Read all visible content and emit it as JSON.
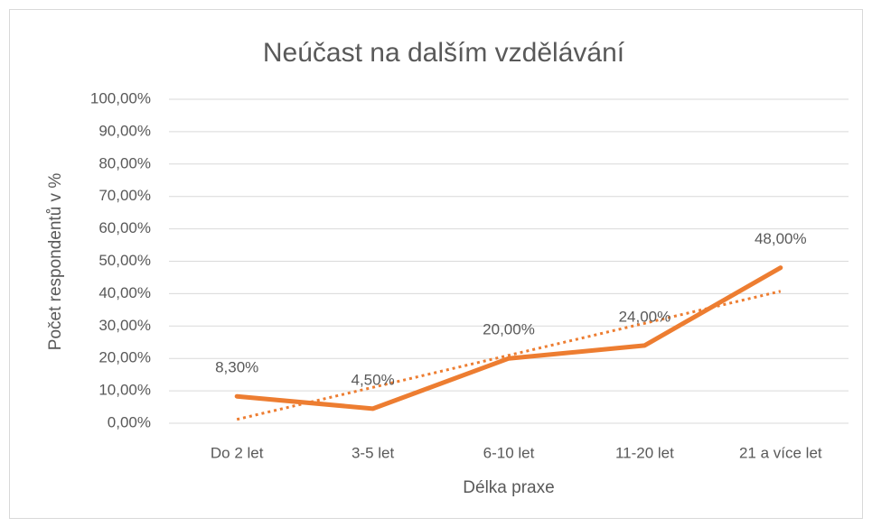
{
  "chart_data": {
    "type": "line",
    "title": "Neúčast na dalším vzdělávání",
    "x_label": "Délka praxe",
    "y_label": "Počet respondentů v %",
    "categories": [
      "Do 2 let",
      "3-5 let",
      "6-10 let",
      "11-20 let",
      "21 a více let"
    ],
    "series": [
      {
        "color": "#ed7d31",
        "values": [
          8.3,
          4.5,
          20,
          24,
          48
        ],
        "value_labels": [
          "8,30%",
          "4,50%",
          "20,00%",
          "24,00%",
          "48,00%"
        ]
      }
    ],
    "trendline": {
      "color": "#ed7d31",
      "style": "dotted",
      "values": [
        1.18,
        11.07,
        20.96,
        30.85,
        40.74
      ]
    },
    "ylim": [
      0,
      100
    ],
    "yticks": [
      {
        "value": 0,
        "label": "0,00%"
      },
      {
        "value": 10,
        "label": "10,00%"
      },
      {
        "value": 20,
        "label": "20,00%"
      },
      {
        "value": 30,
        "label": "30,00%"
      },
      {
        "value": 40,
        "label": "40,00%"
      },
      {
        "value": 50,
        "label": "50,00%"
      },
      {
        "value": 60,
        "label": "60,00%"
      },
      {
        "value": 70,
        "label": "70,00%"
      },
      {
        "value": 80,
        "label": "80,00%"
      },
      {
        "value": 90,
        "label": "90,00%"
      },
      {
        "value": 100,
        "label": "100,00%"
      }
    ],
    "grid": true
  }
}
